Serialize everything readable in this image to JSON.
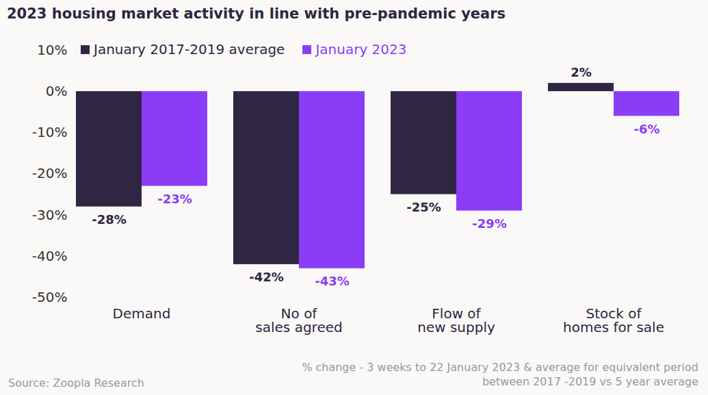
{
  "chart_data": {
    "type": "bar",
    "title": "2023 housing market activity in line with pre-pandemic years",
    "categories": [
      "Demand",
      "No of\nsales agreed",
      "Flow of\nnew supply",
      "Stock of\nhomes for sale"
    ],
    "series": [
      {
        "name": "January 2017-2019 average",
        "color": "#2e2642",
        "values": [
          -28,
          -42,
          -25,
          2
        ],
        "value_labels": [
          "-28%",
          "-42%",
          "-25%",
          "2%"
        ]
      },
      {
        "name": "January 2023",
        "color": "#8b3df5",
        "values": [
          -23,
          -43,
          -29,
          -6
        ],
        "value_labels": [
          "-23%",
          "-43%",
          "-29%",
          "-6%"
        ]
      }
    ],
    "ylim": [
      -50,
      10
    ],
    "yticks": [
      {
        "value": -50,
        "label": "-50%"
      },
      {
        "value": -40,
        "label": "-40%"
      },
      {
        "value": -30,
        "label": "-30%"
      },
      {
        "value": -20,
        "label": "-20%"
      },
      {
        "value": -10,
        "label": "-10%"
      },
      {
        "value": 0,
        "label": "0%"
      },
      {
        "value": 10,
        "label": "10%"
      }
    ],
    "grid": false,
    "legend": "top-left",
    "data_labels": true,
    "caption": "% change - 3 weeks to 22 January 2023 & average for equivalent period\nbetween 2017 -2019 vs 5 year average",
    "source": "Source: Zoopla Research"
  }
}
